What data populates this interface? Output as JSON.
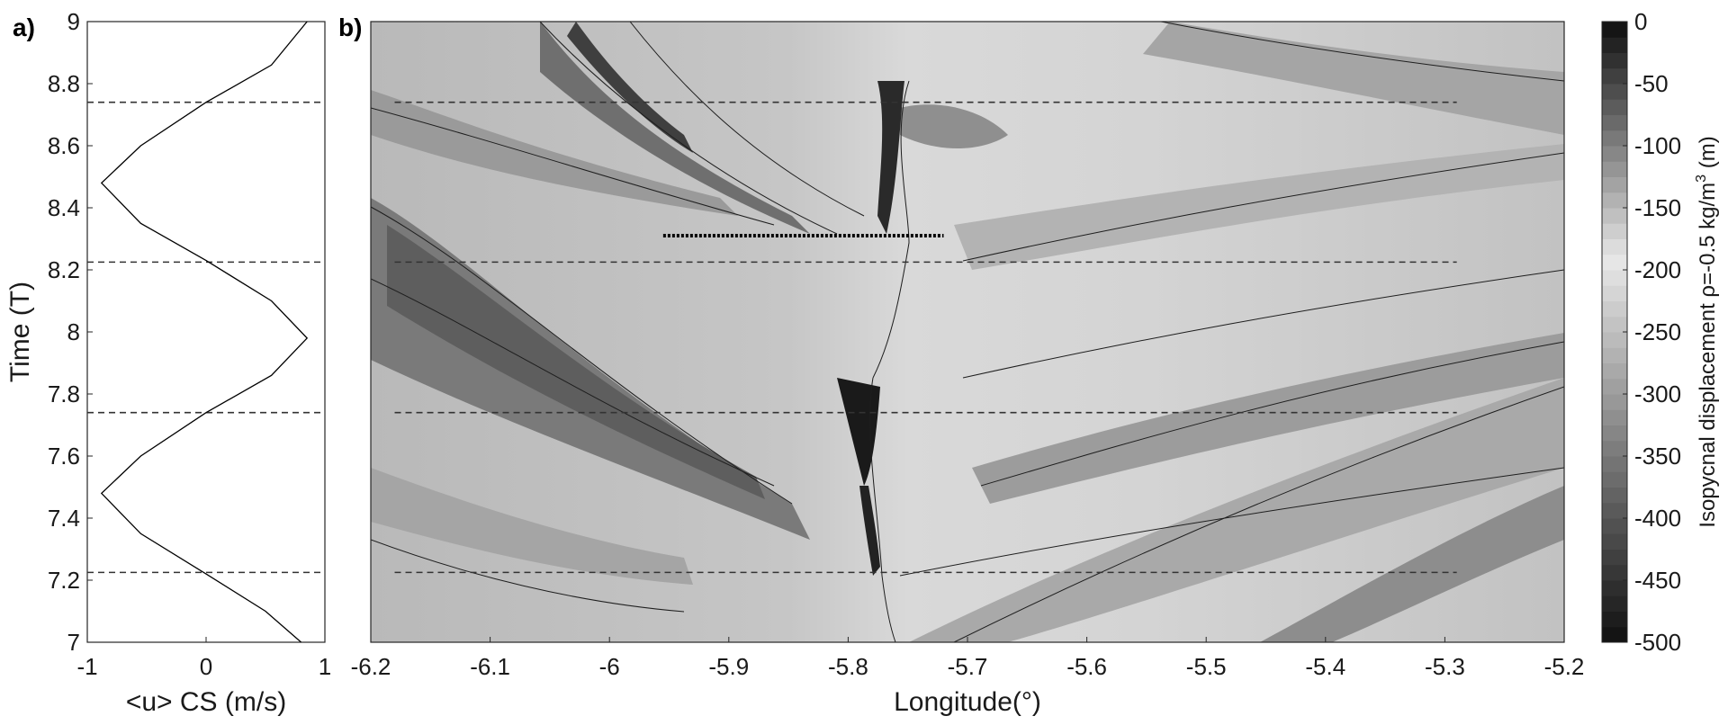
{
  "chart_data": [
    {
      "type": "line",
      "panel_label": "a)",
      "xlabel": "<u> CS (m/s)",
      "ylabel": "Time (T)",
      "xlim": [
        -1,
        1
      ],
      "ylim": [
        7,
        9
      ],
      "x_ticks": [
        "-1",
        "0",
        "1"
      ],
      "y_ticks": [
        "7",
        "7.2",
        "7.4",
        "7.6",
        "7.8",
        "8",
        "8.2",
        "8.4",
        "8.6",
        "8.8",
        "9"
      ],
      "series": [
        {
          "values": [
            {
              "t": 7.0,
              "u": 0.8
            },
            {
              "t": 7.1,
              "u": 0.5
            },
            {
              "t": 7.22,
              "u": 0.0
            },
            {
              "t": 7.35,
              "u": -0.55
            },
            {
              "t": 7.48,
              "u": -0.88
            },
            {
              "t": 7.6,
              "u": -0.55
            },
            {
              "t": 7.74,
              "u": 0.0
            },
            {
              "t": 7.86,
              "u": 0.55
            },
            {
              "t": 7.98,
              "u": 0.85
            },
            {
              "t": 8.1,
              "u": 0.55
            },
            {
              "t": 8.23,
              "u": 0.0
            },
            {
              "t": 8.35,
              "u": -0.55
            },
            {
              "t": 8.48,
              "u": -0.88
            },
            {
              "t": 8.6,
              "u": -0.55
            },
            {
              "t": 8.74,
              "u": 0.0
            },
            {
              "t": 8.86,
              "u": 0.55
            },
            {
              "t": 9.0,
              "u": 0.85
            }
          ]
        }
      ],
      "dashed_lines_t": [
        7.225,
        7.74,
        8.225,
        8.74
      ]
    },
    {
      "type": "heatmap",
      "panel_label": "b)",
      "xlabel": "Longitude(°)",
      "ylabel": "",
      "xlim": [
        -6.2,
        -5.2
      ],
      "ylim": [
        7,
        9
      ],
      "x_ticks": [
        "-6.2",
        "-6.1",
        "-6",
        "-5.9",
        "-5.8",
        "-5.7",
        "-5.6",
        "-5.5",
        "-5.4",
        "-5.3",
        "-5.2"
      ],
      "dashed_lines_t": [
        7.225,
        7.74,
        8.225,
        8.74
      ],
      "dashed_lines_xrange": [
        -6.18,
        -5.29
      ],
      "dotted_line": {
        "t": 8.31,
        "x_from": -5.955,
        "x_to": -5.72
      },
      "colorbar": {
        "label": "Isopycnal displacement ρ=-0.5 kg/m",
        "label_sup": "3",
        "label_tail": " (m)",
        "range": [
          -500,
          0
        ],
        "ticks": [
          "0",
          "-50",
          "-100",
          "-150",
          "-200",
          "-250",
          "-300",
          "-350",
          "-400",
          "-450",
          "-500"
        ],
        "color_min": "#141414",
        "color_max": "#e8e8e8",
        "color_zero": "#151515"
      }
    }
  ]
}
